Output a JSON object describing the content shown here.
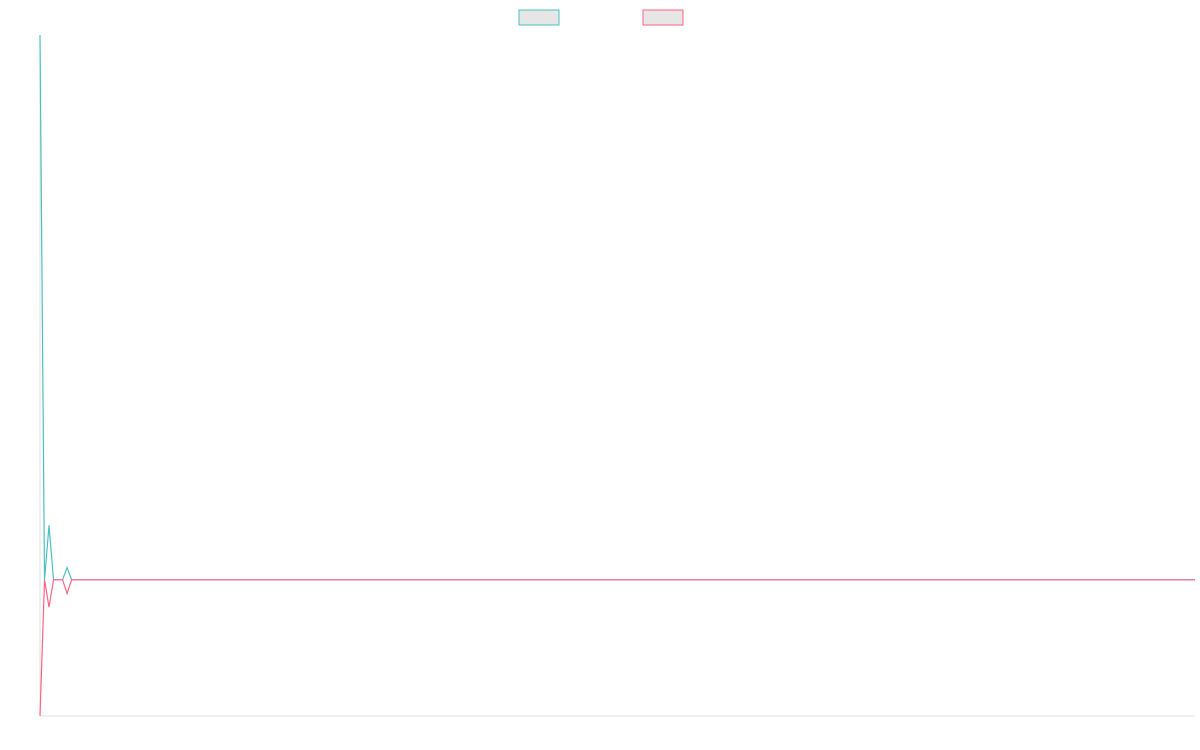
{
  "chart_data": {
    "type": "line",
    "x": [
      0,
      1,
      2,
      3,
      5,
      6,
      7,
      256
    ],
    "xlim": [
      0,
      256
    ],
    "ylim": [
      -1,
      4
    ],
    "series": [
      {
        "color": "#4bc0c0",
        "values": [
          4,
          0,
          0.4,
          0,
          0,
          0.09,
          0,
          0
        ]
      },
      {
        "color": "#ff6384",
        "values": [
          -1,
          0,
          -0.2,
          0,
          0,
          -0.1,
          0,
          0
        ]
      }
    ]
  }
}
